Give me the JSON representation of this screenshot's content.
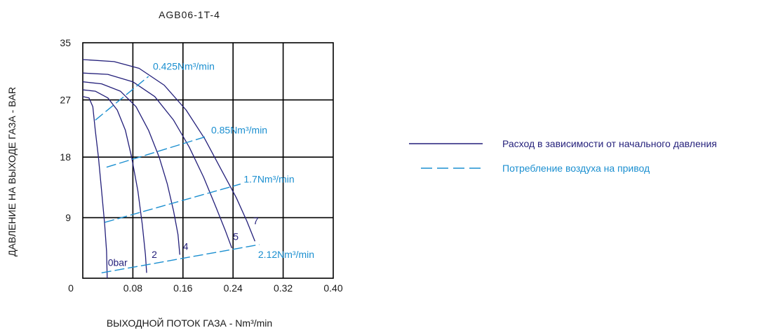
{
  "colors": {
    "dark": "#231f7a",
    "cyan": "#1b8fd0",
    "grid": "#000000",
    "text": "#1a1a1a"
  },
  "chart_data": {
    "type": "line",
    "title": "AGB06-1T-4",
    "xlabel": "ВЫХОДНОЙ ПОТОК ГАЗА - Nm³/min",
    "ylabel": "ДАВЛЕНИЕ НА ВЫХОДЕ ГАЗА - BAR",
    "xlim": [
      0,
      0.4
    ],
    "ylim": [
      0,
      35
    ],
    "x_ticks": [
      "0",
      "0.08",
      "0.16",
      "0.24",
      "0.32",
      "0.40"
    ],
    "x_tick_values": [
      0,
      0.08,
      0.16,
      0.24,
      0.32,
      0.4
    ],
    "y_ticks": [
      "35",
      "27",
      "18",
      "9"
    ],
    "y_tick_values": [
      35,
      26.5,
      18,
      9
    ],
    "grid": true,
    "series": [
      {
        "name": "0bar",
        "label_at": [
          0.04,
          1.8
        ],
        "points": [
          [
            0,
            27
          ],
          [
            0.01,
            26.8
          ],
          [
            0.016,
            25.5
          ],
          [
            0.02,
            22
          ],
          [
            0.025,
            18
          ],
          [
            0.03,
            13
          ],
          [
            0.035,
            8
          ],
          [
            0.038,
            4
          ],
          [
            0.039,
            0
          ]
        ]
      },
      {
        "name": "2",
        "label_at": [
          0.11,
          3.0
        ],
        "points": [
          [
            0,
            28
          ],
          [
            0.02,
            27.8
          ],
          [
            0.04,
            26.8
          ],
          [
            0.055,
            25
          ],
          [
            0.068,
            22
          ],
          [
            0.078,
            18
          ],
          [
            0.088,
            13
          ],
          [
            0.095,
            8
          ],
          [
            0.1,
            3.5
          ],
          [
            0.102,
            0.8
          ]
        ]
      },
      {
        "name": "4",
        "label_at": [
          0.16,
          4.2
        ],
        "points": [
          [
            0,
            29.2
          ],
          [
            0.03,
            28.9
          ],
          [
            0.06,
            27.8
          ],
          [
            0.085,
            25.5
          ],
          [
            0.105,
            22
          ],
          [
            0.122,
            18
          ],
          [
            0.135,
            14
          ],
          [
            0.145,
            10
          ],
          [
            0.152,
            6.5
          ],
          [
            0.155,
            3.5
          ]
        ]
      },
      {
        "name": "5",
        "label_at": [
          0.24,
          5.7
        ],
        "points": [
          [
            0,
            30.5
          ],
          [
            0.04,
            30.3
          ],
          [
            0.08,
            29.2
          ],
          [
            0.115,
            27
          ],
          [
            0.145,
            23.5
          ],
          [
            0.17,
            19.5
          ],
          [
            0.193,
            15
          ],
          [
            0.213,
            10.5
          ],
          [
            0.228,
            7
          ],
          [
            0.238,
            4.5
          ]
        ]
      },
      {
        "name": "7",
        "label_at": [
          0.272,
          8.0
        ],
        "points": [
          [
            0,
            32.5
          ],
          [
            0.05,
            32.2
          ],
          [
            0.09,
            31.2
          ],
          [
            0.13,
            28.7
          ],
          [
            0.165,
            25
          ],
          [
            0.195,
            20.7
          ],
          [
            0.222,
            16
          ],
          [
            0.245,
            12
          ],
          [
            0.262,
            8.5
          ],
          [
            0.275,
            5.5
          ]
        ]
      }
    ],
    "consumption_lines": [
      {
        "label": "0.425Nm³/min",
        "label_at": [
          0.112,
          31.0
        ],
        "from": [
          0.02,
          23.5
        ],
        "to": [
          0.105,
          30.0
        ]
      },
      {
        "label": "0.85Nm³/min",
        "label_at": [
          0.205,
          21.5
        ],
        "from": [
          0.038,
          16.5
        ],
        "to": [
          0.195,
          21.0
        ]
      },
      {
        "label": "1.7Nm³/min",
        "label_at": [
          0.257,
          14.2
        ],
        "from": [
          0.035,
          8.3
        ],
        "to": [
          0.252,
          14.0
        ]
      },
      {
        "label": "2.12Nm³/min",
        "label_at": [
          0.28,
          3.0
        ],
        "from": [
          0.03,
          0.8
        ],
        "to": [
          0.282,
          5.0
        ]
      }
    ],
    "legend": {
      "placement": "right",
      "items": [
        {
          "text": "Расход в зависимости от начального давления",
          "style": "solid"
        },
        {
          "text": "Потребление воздуха на привод",
          "style": "dashed"
        }
      ]
    }
  }
}
